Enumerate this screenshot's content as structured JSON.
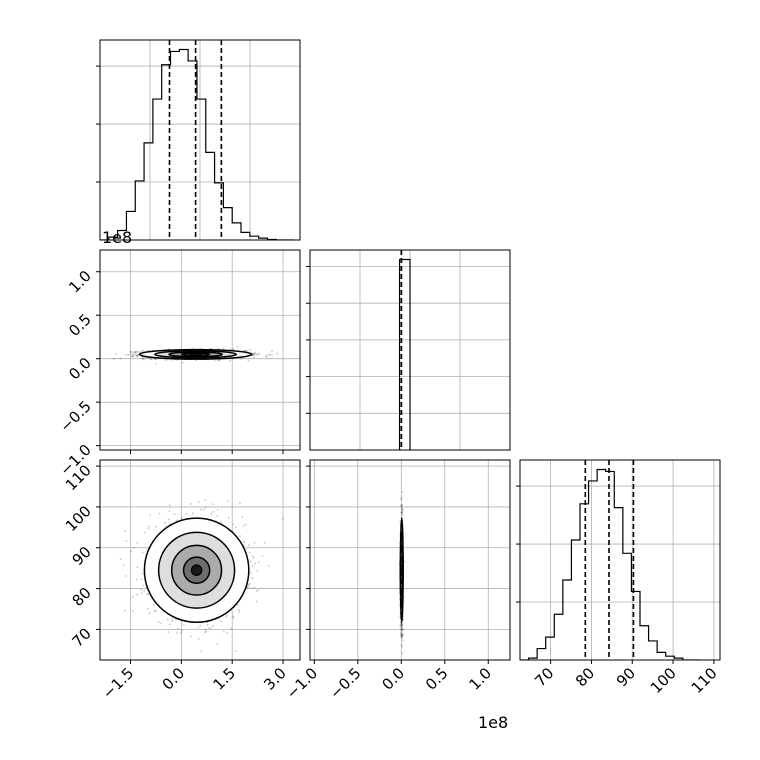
{
  "chart_data": {
    "type": "corner",
    "grid": true,
    "offset_labels": {
      "panel_1_0_y": "1e8",
      "panel_2_1_x": "1e8"
    },
    "panels": [
      {
        "id": "hist-0",
        "row": 0,
        "col": 0,
        "type": "histogram",
        "xlim": [
          -2.4,
          3.5
        ],
        "bin_edges": [
          -2.4,
          -2.14,
          -1.88,
          -1.62,
          -1.36,
          -1.1,
          -0.84,
          -0.58,
          -0.32,
          -0.06,
          0.2,
          0.46,
          0.72,
          0.98,
          1.24,
          1.5,
          1.76,
          2.02,
          2.28,
          2.54,
          2.8,
          3.06,
          3.32
        ],
        "counts": [
          0.0,
          0.015,
          0.05,
          0.15,
          0.31,
          0.51,
          0.74,
          0.92,
          0.99,
          1.0,
          0.94,
          0.74,
          0.46,
          0.3,
          0.17,
          0.09,
          0.04,
          0.02,
          0.01,
          0.003,
          0.0,
          0.0
        ],
        "quantiles": [
          -0.35,
          0.42,
          1.18
        ],
        "ytick_count": 3
      },
      {
        "id": "scatter-1-0",
        "row": 1,
        "col": 0,
        "type": "density2d",
        "xlim": [
          -2.4,
          3.5
        ],
        "ylim": [
          -105000000,
          125000000
        ],
        "yticks": [
          -1.0,
          -0.5,
          0.0,
          0.5,
          1.0
        ],
        "ytick_labels": [
          "−1.0",
          "−0.5",
          "0.0",
          "0.5",
          "1.0"
        ],
        "center": [
          0.42,
          5000000
        ],
        "spread_x": 0.75,
        "spread_y": 2500000
      },
      {
        "id": "hist-1",
        "row": 1,
        "col": 1,
        "type": "histogram",
        "xlim": [
          -105000000,
          125000000
        ],
        "bin_edges": [
          -2000000,
          10000000
        ],
        "counts": [
          1.0
        ],
        "quantiles": [
          0.0,
          0.0,
          0.0
        ],
        "ytick_count": 5
      },
      {
        "id": "scatter-2-0",
        "row": 2,
        "col": 0,
        "type": "density2d",
        "xlim": [
          -2.4,
          3.5
        ],
        "ylim": [
          62.5,
          111.5
        ],
        "xticks": [
          -1.5,
          0.0,
          1.5,
          3.0
        ],
        "xtick_labels": [
          "−1.5",
          "0.0",
          "1.5",
          "3.0"
        ],
        "yticks": [
          70,
          80,
          90,
          100,
          110
        ],
        "ytick_labels": [
          "70",
          "80",
          "90",
          "100",
          "110"
        ],
        "center": [
          0.45,
          84.5
        ],
        "spread_x": 0.7,
        "spread_y": 5.8
      },
      {
        "id": "scatter-2-1",
        "row": 2,
        "col": 1,
        "type": "density2d",
        "xlim": [
          -105000000,
          125000000
        ],
        "ylim": [
          62.5,
          111.5
        ],
        "xticks": [
          -1.0,
          -0.5,
          0.0,
          0.5,
          1.0
        ],
        "xtick_labels": [
          "−1.0",
          "−0.5",
          "0.0",
          "0.5",
          "1.0"
        ],
        "center": [
          500000,
          84.5
        ],
        "spread_x": 700000,
        "spread_y": 5.8
      },
      {
        "id": "hist-2",
        "row": 2,
        "col": 2,
        "type": "histogram",
        "xlim": [
          62.5,
          111.5
        ],
        "bin_edges": [
          62.5,
          64.6,
          66.7,
          68.8,
          70.9,
          73.0,
          75.1,
          77.2,
          79.3,
          81.4,
          83.5,
          85.6,
          87.7,
          89.8,
          91.9,
          94.0,
          96.1,
          98.2,
          100.3,
          102.4,
          104.5,
          106.6
        ],
        "counts": [
          0.0,
          0.01,
          0.06,
          0.12,
          0.24,
          0.42,
          0.63,
          0.82,
          0.94,
          1.0,
          0.99,
          0.8,
          0.56,
          0.36,
          0.18,
          0.1,
          0.04,
          0.02,
          0.01,
          0.0,
          0.0
        ],
        "quantiles": [
          78.5,
          84.3,
          90.3
        ],
        "xticks": [
          70,
          80,
          90,
          100,
          110
        ],
        "xtick_labels": [
          "70",
          "80",
          "90",
          "100",
          "110"
        ],
        "ytick_count": 3
      }
    ]
  }
}
